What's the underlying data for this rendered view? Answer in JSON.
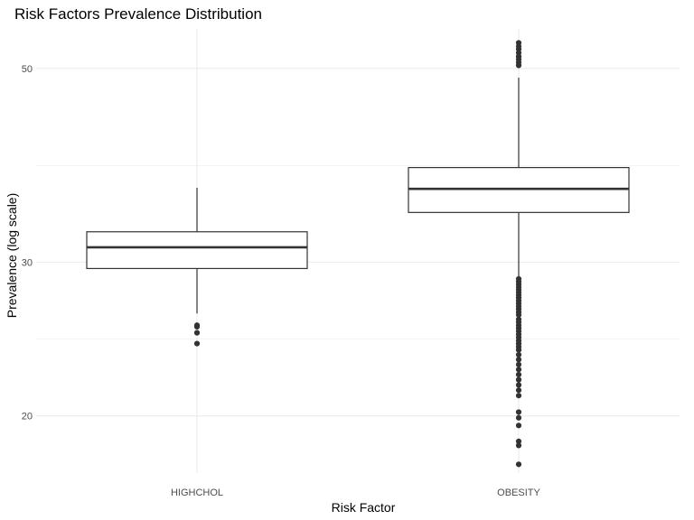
{
  "chart_data": {
    "type": "boxplot",
    "title": "Risk Factors Prevalence Distribution",
    "xlabel": "Risk Factor",
    "ylabel": "Prevalence (log scale)",
    "y_scale": "log10",
    "ylim": [
      17.2,
      55.5
    ],
    "y_ticks": [
      20,
      30,
      50
    ],
    "y_minor_ticks": [
      24.5,
      38.7
    ],
    "grid": true,
    "categories": [
      "HIGHCHOL",
      "OBESITY"
    ],
    "boxes": [
      {
        "category": "HIGHCHOL",
        "whisker_low": 26.2,
        "q1": 29.5,
        "median": 31.2,
        "q3": 32.5,
        "whisker_high": 36.5,
        "outliers": [
          25.4,
          25.3,
          24.9,
          24.2
        ]
      },
      {
        "category": "OBESITY",
        "whisker_low": 28.9,
        "q1": 34.2,
        "median": 36.4,
        "q3": 38.5,
        "whisker_high": 48.8,
        "outliers": [
          53.5,
          53.0,
          52.6,
          52.1,
          51.6,
          51.2,
          50.8,
          50.4,
          28.7,
          28.5,
          28.3,
          28.1,
          27.9,
          27.7,
          27.5,
          27.3,
          27.1,
          26.9,
          26.7,
          26.5,
          26.3,
          26.1,
          25.8,
          25.6,
          25.4,
          25.2,
          25.0,
          24.8,
          24.6,
          24.4,
          24.2,
          24.0,
          23.8,
          23.5,
          23.2,
          22.9,
          22.6,
          22.3,
          22.0,
          21.7,
          21.4,
          21.1,
          20.2,
          19.9,
          19.5,
          18.7,
          18.5,
          17.6
        ]
      }
    ]
  }
}
